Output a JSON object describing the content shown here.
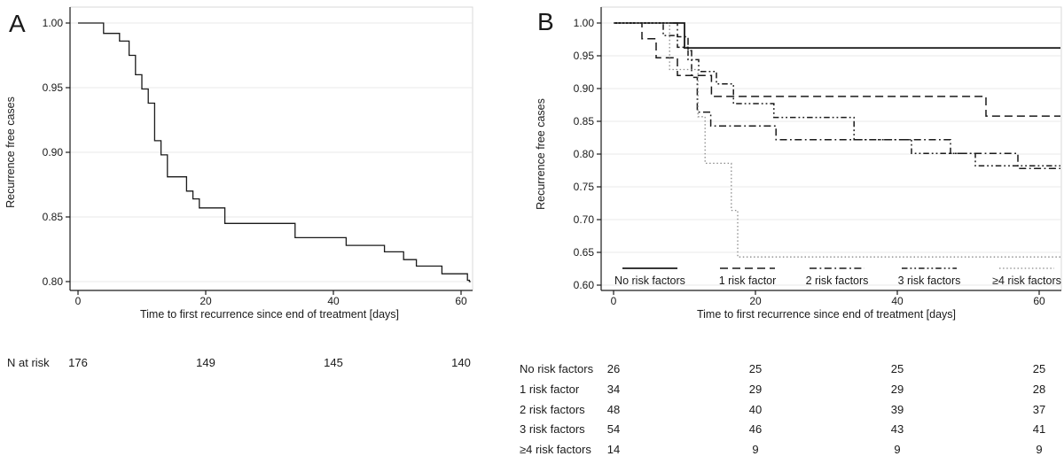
{
  "colors": {
    "line": "#1a1a1a",
    "dotted_line": "#8a8a8a",
    "gridline": "#e9e9e9",
    "plot_border": "#d9d9d9",
    "text": "#1a1a1a"
  },
  "chart_data": [
    {
      "type": "line",
      "panel_letter": "A",
      "title": "",
      "xlabel": "Time to first recurrence since end of treatment [days]",
      "ylabel": "Recurrence free cases",
      "xlim": [
        0,
        62
      ],
      "ylim": [
        0.8,
        1.0
      ],
      "x_ticks": [
        0,
        20,
        40,
        60
      ],
      "x_tick_labels": [
        "0",
        "20",
        "40",
        "60"
      ],
      "y_ticks": [
        1.0,
        0.95,
        0.9,
        0.85,
        0.8
      ],
      "y_tick_labels": [
        "1.00",
        "0.95",
        "0.90",
        "0.85",
        "0.80"
      ],
      "grid": true,
      "legend": false,
      "series": [
        {
          "style": "solid",
          "color": "#1a1a1a",
          "width": 1.3,
          "end": 61.5,
          "steps": [
            [
              0,
              1.0
            ],
            [
              4,
              0.992
            ],
            [
              6.5,
              0.986
            ],
            [
              8,
              0.975
            ],
            [
              9,
              0.96
            ],
            [
              10,
              0.949
            ],
            [
              11,
              0.938
            ],
            [
              12,
              0.909
            ],
            [
              13,
              0.898
            ],
            [
              14,
              0.881
            ],
            [
              17,
              0.87
            ],
            [
              18,
              0.864
            ],
            [
              19,
              0.857
            ],
            [
              23,
              0.845
            ],
            [
              34,
              0.834
            ],
            [
              42,
              0.828
            ],
            [
              48,
              0.823
            ],
            [
              51,
              0.817
            ],
            [
              53,
              0.812
            ],
            [
              57,
              0.806
            ],
            [
              61,
              0.801
            ],
            [
              61.3,
              0.8
            ]
          ]
        }
      ]
    },
    {
      "type": "line",
      "panel_letter": "B",
      "title": "",
      "xlabel": "Time to first recurrence since end of treatment [days]",
      "ylabel": "Recurrence free cases",
      "xlim": [
        0,
        63
      ],
      "ylim": [
        0.6,
        1.0
      ],
      "x_ticks": [
        0,
        20,
        40,
        60
      ],
      "x_tick_labels": [
        "0",
        "20",
        "40",
        "60"
      ],
      "y_ticks": [
        1.0,
        0.95,
        0.9,
        0.85,
        0.8,
        0.75,
        0.7,
        0.65,
        0.6
      ],
      "y_tick_labels": [
        "1.00",
        "0.95",
        "0.90",
        "0.85",
        "0.80",
        "0.75",
        "0.70",
        "0.65",
        "0.60"
      ],
      "grid": true,
      "legend": true,
      "legend_position": "inside-bottom",
      "series": [
        {
          "name": "No risk factors",
          "style": "solid",
          "color": "#1a1a1a",
          "width": 1.8,
          "end": 63,
          "steps": [
            [
              0,
              1.0
            ],
            [
              10,
              0.962
            ]
          ]
        },
        {
          "name": "1 risk factor",
          "style": "dash",
          "color": "#1a1a1a",
          "width": 1.5,
          "end": 63,
          "steps": [
            [
              0,
              1.0
            ],
            [
              4,
              0.976
            ],
            [
              6,
              0.947
            ],
            [
              9,
              0.92
            ],
            [
              13.8,
              0.888
            ],
            [
              52.5,
              0.858
            ]
          ]
        },
        {
          "name": "2 risk factors",
          "style": "dashdot",
          "color": "#1a1a1a",
          "width": 1.5,
          "end": 63,
          "steps": [
            [
              0,
              1.0
            ],
            [
              9,
              0.979
            ],
            [
              10.5,
              0.958
            ],
            [
              11,
              0.917
            ],
            [
              11.8,
              0.864
            ],
            [
              13.7,
              0.843
            ],
            [
              22.9,
              0.822
            ],
            [
              47.5,
              0.801
            ],
            [
              57,
              0.778
            ]
          ]
        },
        {
          "name": "3 risk factors",
          "style": "dashdotdot",
          "color": "#1a1a1a",
          "width": 1.5,
          "end": 63,
          "steps": [
            [
              0,
              1.0
            ],
            [
              7,
              0.981
            ],
            [
              9,
              0.963
            ],
            [
              10.5,
              0.944
            ],
            [
              12,
              0.926
            ],
            [
              14.5,
              0.907
            ],
            [
              16.9,
              0.877
            ],
            [
              22.6,
              0.856
            ],
            [
              33.9,
              0.822
            ],
            [
              42,
              0.801
            ],
            [
              51,
              0.782
            ]
          ]
        },
        {
          "name": "≥4 risk factors",
          "style": "dot",
          "color": "#8a8a8a",
          "width": 1.3,
          "end": 63,
          "steps": [
            [
              0,
              1.0
            ],
            [
              7.9,
              0.929
            ],
            [
              11.9,
              0.857
            ],
            [
              12.9,
              0.786
            ],
            [
              16.6,
              0.714
            ],
            [
              17.5,
              0.643
            ]
          ]
        }
      ]
    }
  ],
  "tables": {
    "a": {
      "label": "N at risk",
      "values": [
        "176",
        "149",
        "145",
        "140"
      ]
    },
    "b": {
      "rows": [
        {
          "label": "No risk factors",
          "values": [
            "26",
            "25",
            "25",
            "25"
          ]
        },
        {
          "label": "1 risk factor",
          "values": [
            "34",
            "29",
            "29",
            "28"
          ]
        },
        {
          "label": "2 risk factors",
          "values": [
            "48",
            "40",
            "39",
            "37"
          ]
        },
        {
          "label": "3 risk factors",
          "values": [
            "54",
            "46",
            "43",
            "41"
          ]
        },
        {
          "label": "≥4 risk factors",
          "values": [
            "14",
            "9",
            "9",
            "9"
          ]
        }
      ]
    }
  }
}
